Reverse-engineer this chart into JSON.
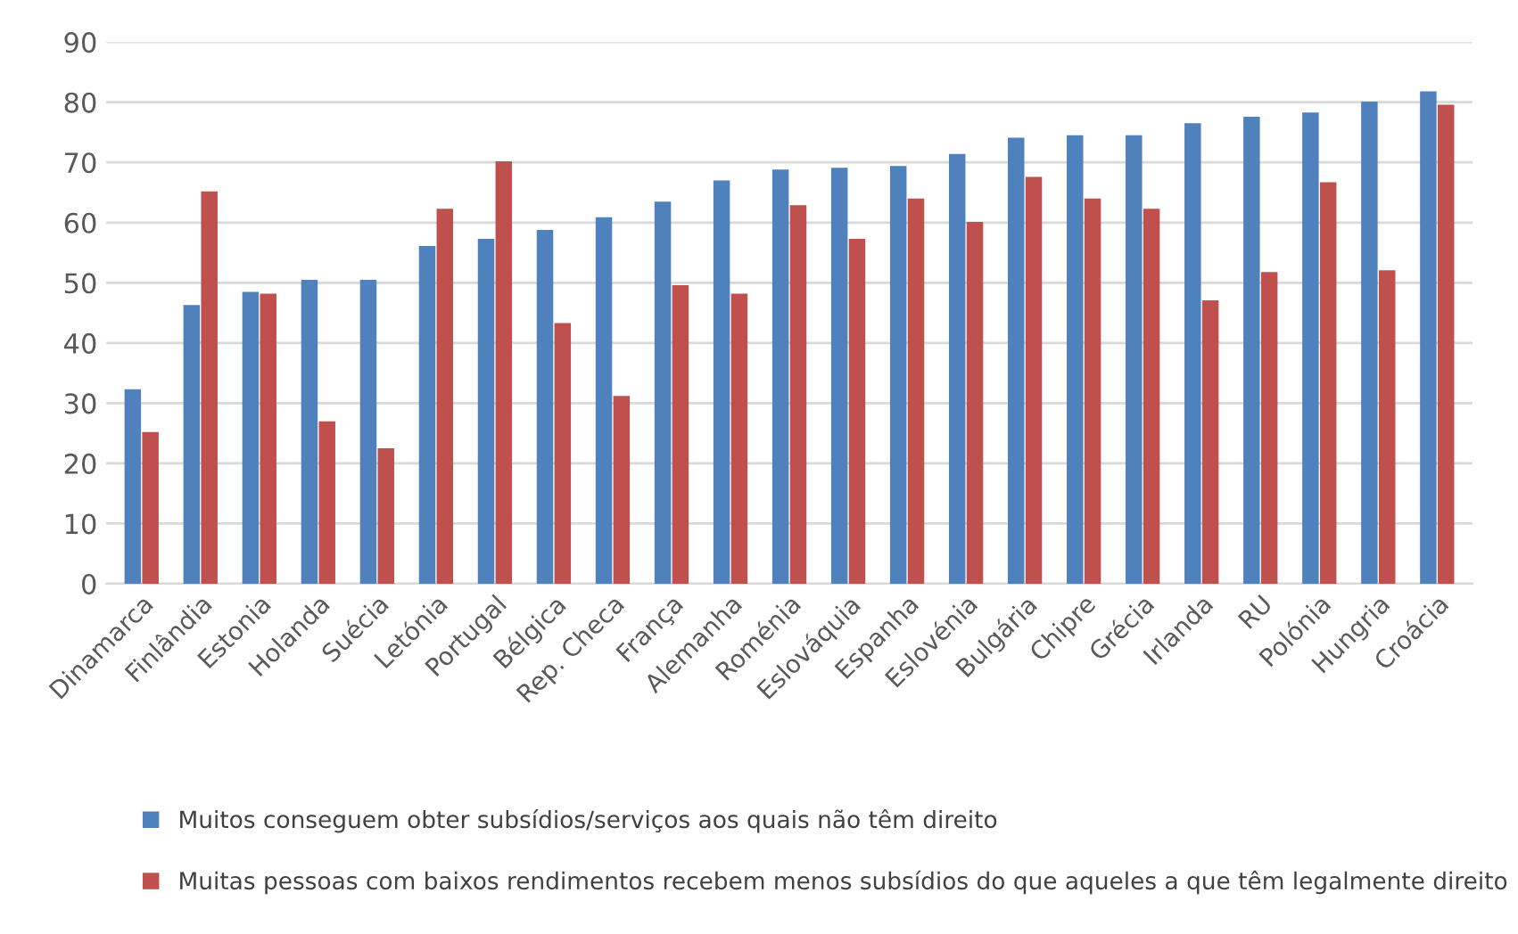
{
  "chart_data": {
    "type": "bar",
    "categories": [
      "Dinamarca",
      "Finlândia",
      "Estonia",
      "Holanda",
      "Suécia",
      "Letónia",
      "Portugal",
      "Bélgica",
      "Rep. Checa",
      "França",
      "Alemanha",
      "Roménia",
      "Eslováquia",
      "Espanha",
      "Eslovénia",
      "Bulgária",
      "Chipre",
      "Grécia",
      "Irlanda",
      "RU",
      "Polónia",
      "Hungria",
      "Croácia"
    ],
    "series": [
      {
        "name": "Muitos conseguem obter subsídios/serviços aos quais não têm direito",
        "color": "#4f81bd",
        "values": [
          32.3,
          46.3,
          48.5,
          50.5,
          50.5,
          56.1,
          57.3,
          58.8,
          60.9,
          63.5,
          67.0,
          68.8,
          69.1,
          69.4,
          71.4,
          74.1,
          74.5,
          74.5,
          76.5,
          77.6,
          78.3,
          80.1,
          81.8
        ]
      },
      {
        "name": "Muitas pessoas com baixos rendimentos recebem menos subsídios do que aqueles a que têm legalmente direito",
        "color": "#c0504d",
        "values": [
          25.2,
          65.2,
          48.2,
          27.0,
          22.5,
          62.3,
          70.2,
          43.3,
          31.2,
          49.6,
          48.2,
          62.9,
          57.3,
          64.0,
          60.1,
          67.6,
          64.0,
          62.3,
          47.1,
          51.8,
          66.7,
          52.1,
          79.6
        ]
      }
    ],
    "ylim": [
      0,
      90
    ],
    "yticks": [
      0,
      10,
      20,
      30,
      40,
      50,
      60,
      70,
      80,
      90
    ],
    "grid": "y",
    "legend": "bottom left"
  }
}
